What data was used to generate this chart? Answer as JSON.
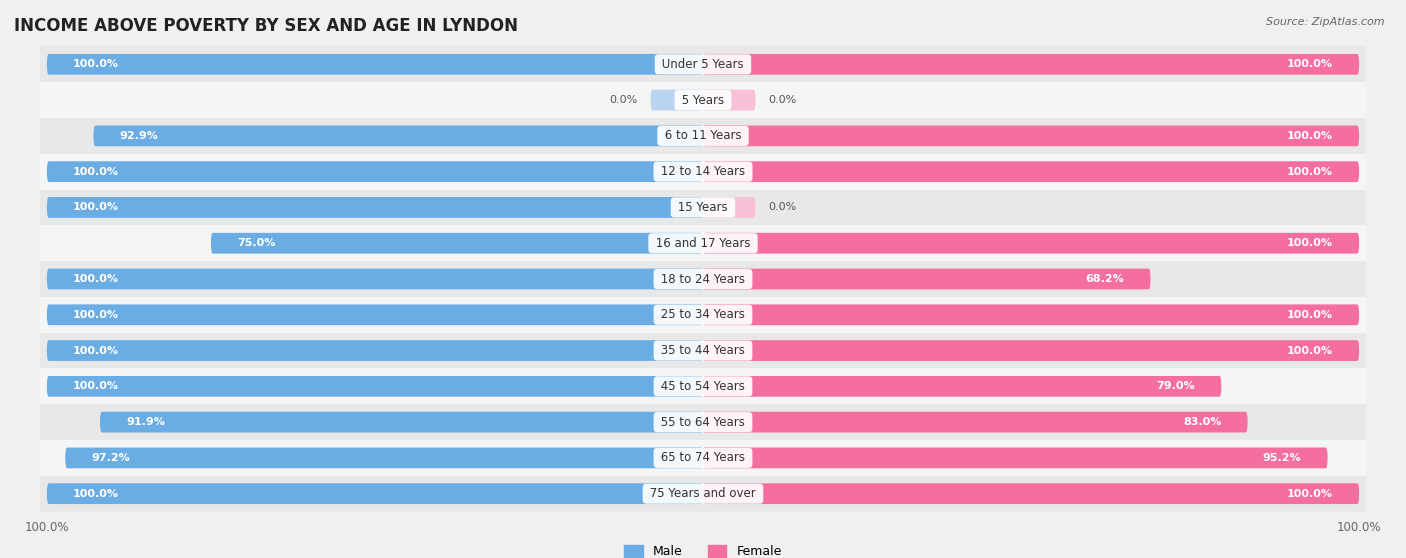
{
  "title": "INCOME ABOVE POVERTY BY SEX AND AGE IN LYNDON",
  "source": "Source: ZipAtlas.com",
  "categories": [
    "Under 5 Years",
    "5 Years",
    "6 to 11 Years",
    "12 to 14 Years",
    "15 Years",
    "16 and 17 Years",
    "18 to 24 Years",
    "25 to 34 Years",
    "35 to 44 Years",
    "45 to 54 Years",
    "55 to 64 Years",
    "65 to 74 Years",
    "75 Years and over"
  ],
  "male_values": [
    100.0,
    0.0,
    92.9,
    100.0,
    100.0,
    75.0,
    100.0,
    100.0,
    100.0,
    100.0,
    91.9,
    97.2,
    100.0
  ],
  "female_values": [
    100.0,
    0.0,
    100.0,
    100.0,
    0.0,
    100.0,
    68.2,
    100.0,
    100.0,
    79.0,
    83.0,
    95.2,
    100.0
  ],
  "male_color": "#6aace4",
  "female_color": "#f46ea0",
  "male_color_light": "#b8d4f0",
  "female_color_light": "#f9c0d8",
  "bar_height": 0.58,
  "background_color": "#f0f0f0",
  "row_alt_color": "#e8e8e8",
  "row_base_color": "#f5f5f5",
  "title_fontsize": 12,
  "label_fontsize": 8.5,
  "value_fontsize": 8,
  "legend_fontsize": 9
}
